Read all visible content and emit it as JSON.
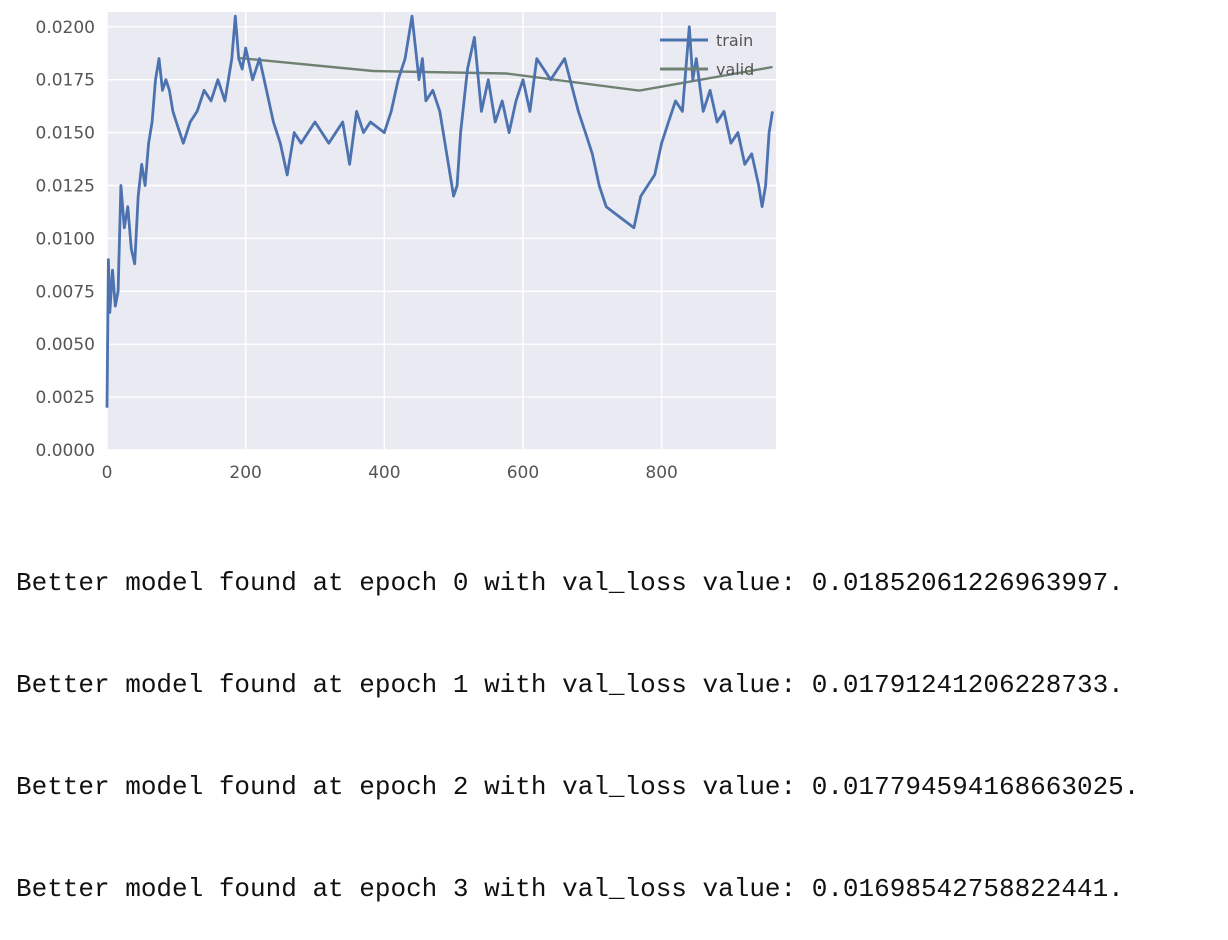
{
  "chart_data": {
    "type": "line",
    "x_ticks": [
      0,
      200,
      400,
      600,
      800
    ],
    "x_tick_labels": [
      "0",
      "200",
      "400",
      "600",
      "800"
    ],
    "y_ticks": [
      0.0,
      0.0025,
      0.005,
      0.0075,
      0.01,
      0.0125,
      0.015,
      0.0175,
      0.02
    ],
    "y_tick_labels": [
      "0.0000",
      "0.0025",
      "0.0050",
      "0.0075",
      "0.0100",
      "0.0125",
      "0.0150",
      "0.0175",
      "0.0200"
    ],
    "xlim": [
      0,
      965
    ],
    "ylim": [
      0,
      0.0207
    ],
    "grid": true,
    "legend": "top-right",
    "series": [
      {
        "name": "train",
        "color": "#4c72b0",
        "x": [
          0,
          2,
          4,
          8,
          12,
          16,
          20,
          25,
          30,
          35,
          40,
          45,
          50,
          55,
          60,
          65,
          70,
          75,
          80,
          85,
          90,
          95,
          100,
          110,
          120,
          130,
          140,
          150,
          160,
          170,
          180,
          185,
          190,
          195,
          200,
          210,
          220,
          230,
          240,
          250,
          260,
          270,
          280,
          290,
          300,
          320,
          340,
          350,
          360,
          370,
          380,
          400,
          410,
          420,
          430,
          440,
          450,
          455,
          460,
          470,
          480,
          490,
          500,
          505,
          510,
          520,
          530,
          540,
          550,
          560,
          570,
          580,
          590,
          600,
          610,
          620,
          640,
          660,
          680,
          690,
          700,
          710,
          720,
          740,
          760,
          770,
          780,
          790,
          800,
          810,
          820,
          830,
          840,
          845,
          850,
          860,
          870,
          880,
          890,
          900,
          910,
          920,
          930,
          940,
          945,
          950,
          955,
          960
        ],
        "values": [
          0.002,
          0.009,
          0.0065,
          0.0085,
          0.0068,
          0.0075,
          0.0125,
          0.0105,
          0.0115,
          0.0095,
          0.0088,
          0.012,
          0.0135,
          0.0125,
          0.0145,
          0.0155,
          0.0175,
          0.0185,
          0.017,
          0.0175,
          0.017,
          0.016,
          0.0155,
          0.0145,
          0.0155,
          0.016,
          0.017,
          0.0165,
          0.0175,
          0.0165,
          0.0185,
          0.0205,
          0.0185,
          0.018,
          0.019,
          0.0175,
          0.0185,
          0.017,
          0.0155,
          0.0145,
          0.013,
          0.015,
          0.0145,
          0.015,
          0.0155,
          0.0145,
          0.0155,
          0.0135,
          0.016,
          0.015,
          0.0155,
          0.015,
          0.016,
          0.0175,
          0.0185,
          0.0205,
          0.0175,
          0.0185,
          0.0165,
          0.017,
          0.016,
          0.014,
          0.012,
          0.0125,
          0.015,
          0.018,
          0.0195,
          0.016,
          0.0175,
          0.0155,
          0.0165,
          0.015,
          0.0165,
          0.0175,
          0.016,
          0.0185,
          0.0175,
          0.0185,
          0.016,
          0.015,
          0.014,
          0.0125,
          0.0115,
          0.011,
          0.0105,
          0.012,
          0.0125,
          0.013,
          0.0145,
          0.0155,
          0.0165,
          0.016,
          0.02,
          0.0175,
          0.0185,
          0.016,
          0.017,
          0.0155,
          0.016,
          0.0145,
          0.015,
          0.0135,
          0.014,
          0.0125,
          0.0115,
          0.0125,
          0.015,
          0.016
        ]
      },
      {
        "name": "valid",
        "color": "#6f8271",
        "x": [
          192,
          384,
          576,
          768,
          960
        ],
        "values": [
          0.01852061226963997,
          0.01791241206228733,
          0.017794594168663025,
          0.01698542758822441,
          0.0181
        ]
      }
    ]
  },
  "log": {
    "lines": [
      "Better model found at epoch 0 with val_loss value: 0.01852061226963997.",
      "Better model found at epoch 1 with val_loss value: 0.01791241206228733.",
      "Better model found at epoch 2 with val_loss value: 0.017794594168663025.",
      "Better model found at epoch 3 with val_loss value: 0.01698542758822441."
    ]
  }
}
